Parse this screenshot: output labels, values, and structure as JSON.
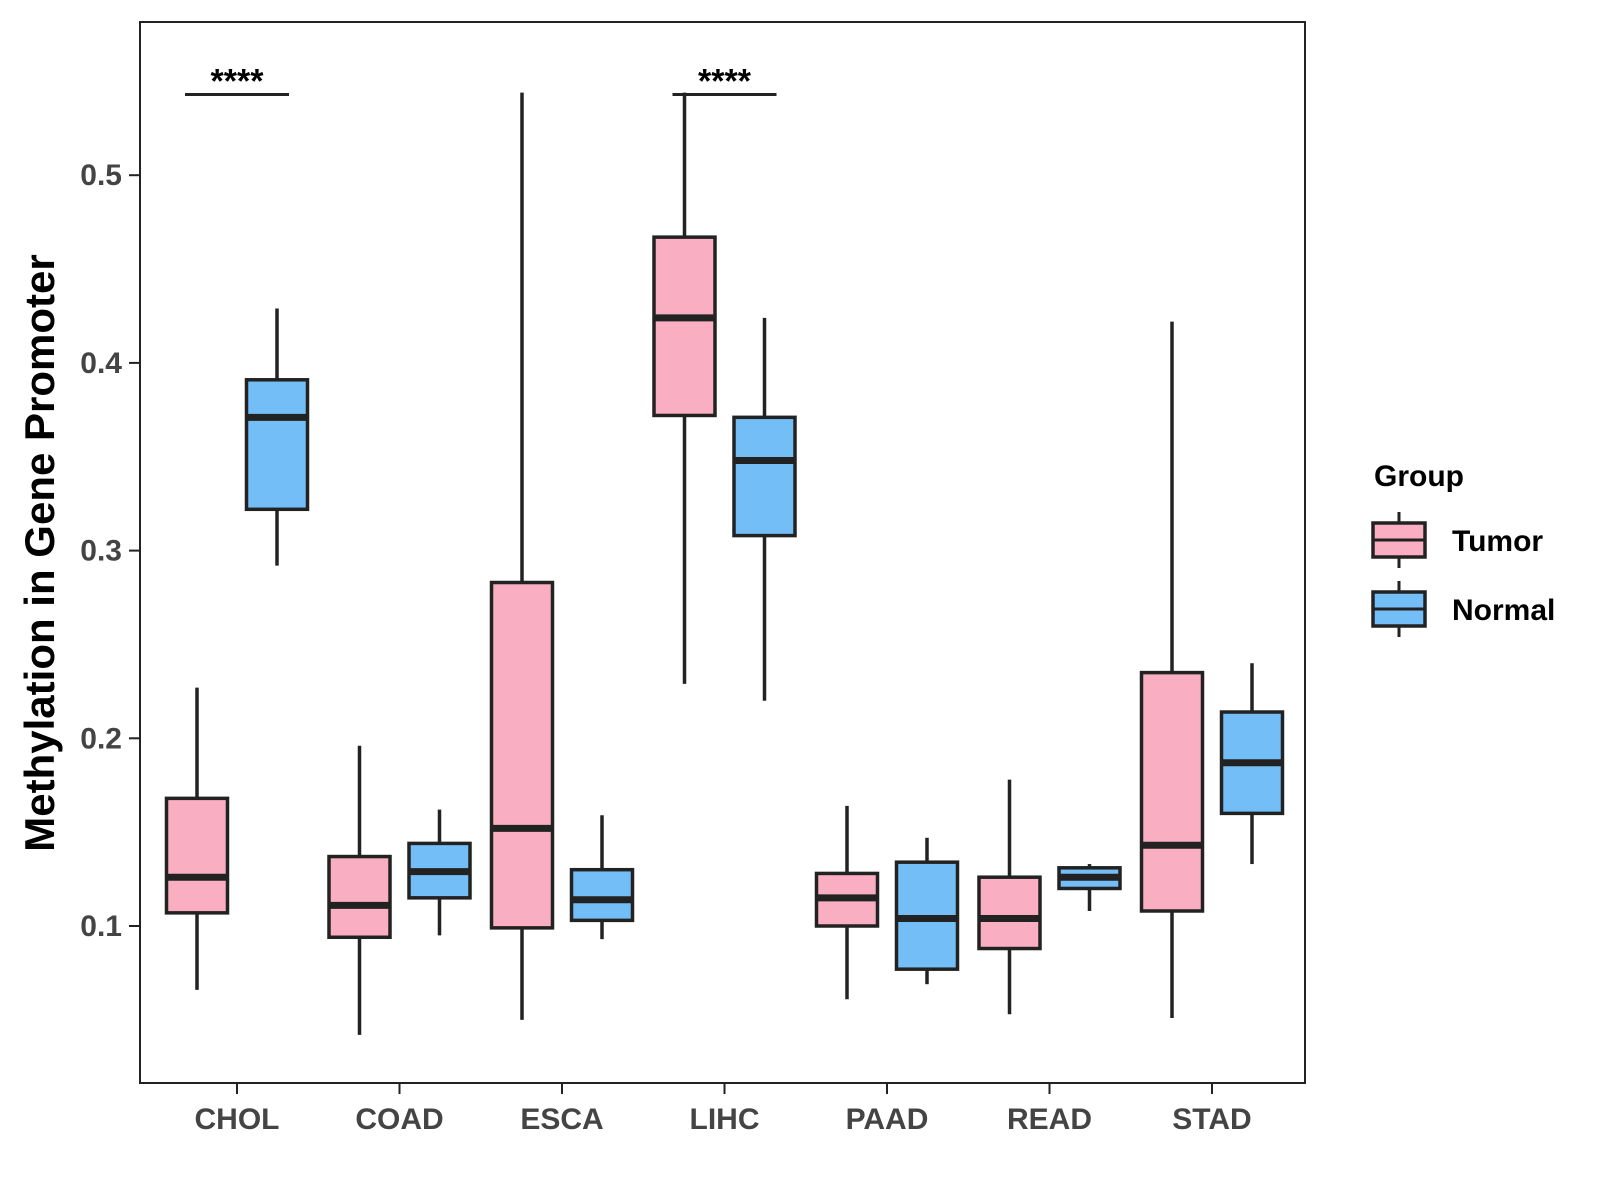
{
  "chart_data": {
    "type": "boxplot",
    "title": "",
    "xlabel": "",
    "ylabel": "Methylation in Gene Promoter",
    "ylim": [
      0.035,
      0.57
    ],
    "yticks": [
      0.1,
      0.2,
      0.3,
      0.4,
      0.5
    ],
    "ytick_labels": [
      "0.1",
      "0.2",
      "0.3",
      "0.4",
      "0.5"
    ],
    "categories": [
      "CHOL",
      "COAD",
      "ESCA",
      "LIHC",
      "PAAD",
      "READ",
      "STAD"
    ],
    "legend": {
      "title": "Group",
      "position": "right",
      "entries": [
        "Tumor",
        "Normal"
      ]
    },
    "colors": {
      "Tumor": "#F9AFC1",
      "Normal": "#74BEF8",
      "outline": "#222222"
    },
    "series": [
      {
        "name": "Tumor",
        "boxes": [
          {
            "category": "CHOL",
            "min": 0.066,
            "q1": 0.107,
            "median": 0.126,
            "q3": 0.168,
            "max": 0.227
          },
          {
            "category": "COAD",
            "min": 0.042,
            "q1": 0.094,
            "median": 0.111,
            "q3": 0.137,
            "max": 0.196
          },
          {
            "category": "ESCA",
            "min": 0.05,
            "q1": 0.099,
            "median": 0.152,
            "q3": 0.283,
            "max": 0.544
          },
          {
            "category": "LIHC",
            "min": 0.229,
            "q1": 0.372,
            "median": 0.424,
            "q3": 0.467,
            "max": 0.544
          },
          {
            "category": "PAAD",
            "min": 0.061,
            "q1": 0.1,
            "median": 0.115,
            "q3": 0.128,
            "max": 0.164
          },
          {
            "category": "READ",
            "min": 0.053,
            "q1": 0.088,
            "median": 0.104,
            "q3": 0.126,
            "max": 0.178
          },
          {
            "category": "STAD",
            "min": 0.051,
            "q1": 0.108,
            "median": 0.143,
            "q3": 0.235,
            "max": 0.422
          }
        ]
      },
      {
        "name": "Normal",
        "boxes": [
          {
            "category": "CHOL",
            "min": 0.292,
            "q1": 0.322,
            "median": 0.371,
            "q3": 0.391,
            "max": 0.429
          },
          {
            "category": "COAD",
            "min": 0.095,
            "q1": 0.115,
            "median": 0.129,
            "q3": 0.144,
            "max": 0.162
          },
          {
            "category": "ESCA",
            "min": 0.093,
            "q1": 0.103,
            "median": 0.114,
            "q3": 0.13,
            "max": 0.159
          },
          {
            "category": "LIHC",
            "min": 0.22,
            "q1": 0.308,
            "median": 0.348,
            "q3": 0.371,
            "max": 0.424
          },
          {
            "category": "PAAD",
            "min": 0.069,
            "q1": 0.077,
            "median": 0.104,
            "q3": 0.134,
            "max": 0.147
          },
          {
            "category": "READ",
            "min": 0.108,
            "q1": 0.12,
            "median": 0.126,
            "q3": 0.131,
            "max": 0.133
          },
          {
            "category": "STAD",
            "min": 0.133,
            "q1": 0.16,
            "median": 0.187,
            "q3": 0.214,
            "max": 0.24
          }
        ]
      }
    ],
    "annotations": [
      {
        "category": "CHOL",
        "text": "****",
        "y": 0.543
      },
      {
        "category": "LIHC",
        "text": "****",
        "y": 0.543
      }
    ]
  }
}
